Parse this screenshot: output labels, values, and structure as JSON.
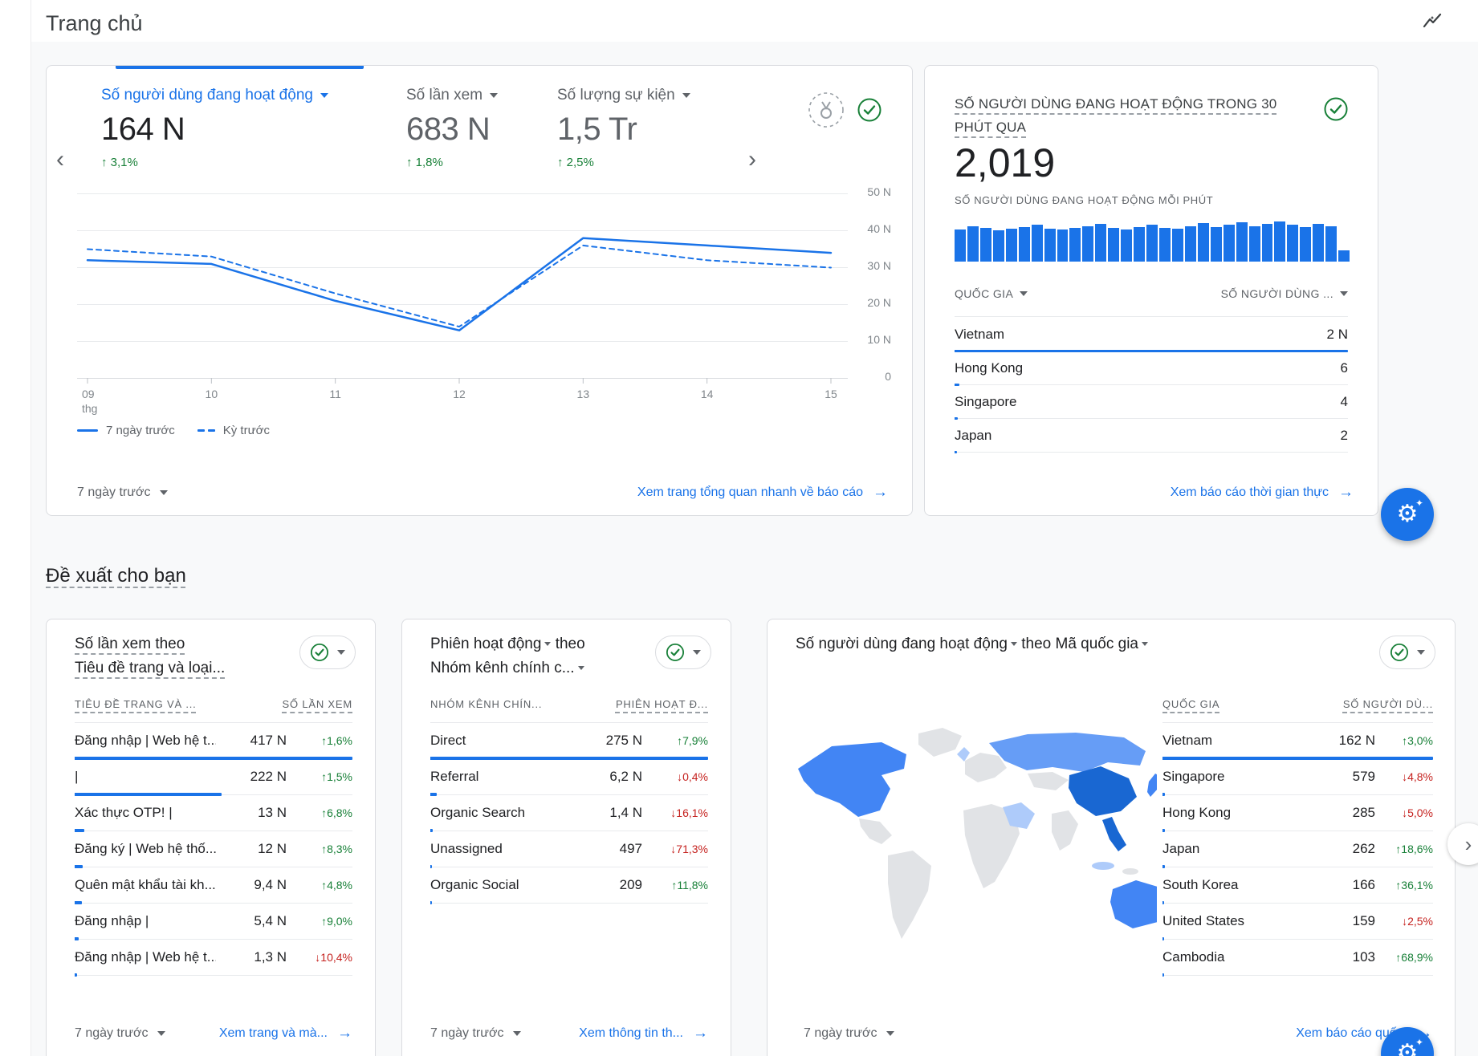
{
  "page": {
    "title": "Trang chủ"
  },
  "colors": {
    "accent": "#1a73e8",
    "up": "#188038",
    "down": "#c5221f",
    "map": {
      "land": "#e1e3e6",
      "low": "#aecbfa",
      "mid": "#669df6",
      "high": "#4285f4",
      "max": "#1967d2"
    }
  },
  "overview_card": {
    "metrics": [
      {
        "label": "Số người dùng đang hoạt động",
        "value": "164 N",
        "change": "3,1%",
        "dir": "up",
        "active": true
      },
      {
        "label": "Số lần xem",
        "value": "683 N",
        "change": "1,8%",
        "dir": "up",
        "active": false
      },
      {
        "label": "Số lượng sự kiện",
        "value": "1,5 Tr",
        "change": "2,5%",
        "dir": "up",
        "active": false
      }
    ],
    "chart_data": {
      "type": "line",
      "x": [
        "09\nthg",
        "10",
        "11",
        "12",
        "13",
        "14",
        "15"
      ],
      "series": [
        {
          "name": "7 ngày trước",
          "style": "solid",
          "values": [
            32,
            31,
            21,
            13,
            38,
            36,
            34
          ]
        },
        {
          "name": "Kỳ trước",
          "style": "dashed",
          "values": [
            35,
            33,
            23,
            14,
            36,
            32,
            30
          ]
        }
      ],
      "ylim": [
        0,
        50
      ],
      "yticks": [
        "50 N",
        "40 N",
        "30 N",
        "20 N",
        "10 N",
        "0"
      ],
      "grid": "horizontal",
      "legend_position": "bottom-left"
    },
    "footer": {
      "range": "7 ngày trước",
      "link": "Xem trang tổng quan nhanh về báo cáo"
    }
  },
  "realtime_card": {
    "title": "SỐ NGƯỜI DÙNG ĐANG HOẠT ĐỘNG TRONG 30 PHÚT QUA",
    "big_number": "2,019",
    "subtitle": "SỐ NGƯỜI DÙNG ĐANG HOẠT ĐỘNG MỖI PHÚT",
    "chart_data": {
      "type": "bar",
      "title": "Người dùng đang hoạt động mỗi phút (30 phút qua)",
      "values": [
        36,
        40,
        38,
        35,
        37,
        39,
        41,
        37,
        36,
        38,
        40,
        42,
        38,
        36,
        39,
        41,
        38,
        37,
        40,
        43,
        39,
        41,
        44,
        40,
        42,
        45,
        41,
        39,
        42,
        40,
        13
      ]
    },
    "columns": [
      "QUỐC GIA",
      "SỐ NGƯỜI DÙNG ..."
    ],
    "rows": [
      {
        "label": "Vietnam",
        "value": "2 N",
        "bar": 100
      },
      {
        "label": "Hong Kong",
        "value": "6",
        "bar": 1.2
      },
      {
        "label": "Singapore",
        "value": "4",
        "bar": 0.9
      },
      {
        "label": "Japan",
        "value": "2",
        "bar": 0.6
      }
    ],
    "footer_link": "Xem báo cáo thời gian thực"
  },
  "suggestions": {
    "title": "Đề xuất cho bạn"
  },
  "views_card": {
    "title_line1": "Số lần xem theo",
    "title_line2": "Tiêu đề trang và loại...",
    "columns": [
      "TIÊU ĐỀ TRANG VÀ ...",
      "SỐ LẦN XEM"
    ],
    "rows": [
      {
        "label": "Đăng nhập | Web hệ t...",
        "value": "417 N",
        "change": "1,6%",
        "dir": "up",
        "bar": 100
      },
      {
        "label": "|",
        "value": "222 N",
        "change": "1,5%",
        "dir": "up",
        "bar": 53
      },
      {
        "label": "Xác thực OTP! |",
        "value": "13 N",
        "change": "6,8%",
        "dir": "up",
        "bar": 3.5
      },
      {
        "label": "Đăng ký | Web hệ thố...",
        "value": "12 N",
        "change": "8,3%",
        "dir": "up",
        "bar": 3
      },
      {
        "label": "Quên mật khẩu tài kh...",
        "value": "9,4 N",
        "change": "4,8%",
        "dir": "up",
        "bar": 2.5
      },
      {
        "label": "Đăng nhập |",
        "value": "5,4 N",
        "change": "9,0%",
        "dir": "up",
        "bar": 1.5
      },
      {
        "label": "Đăng nhập | Web hệ t...",
        "value": "1,3 N",
        "change": "10,4%",
        "dir": "down",
        "bar": 0.8
      }
    ],
    "footer": {
      "range": "7 ngày trước",
      "link": "Xem trang và mà..."
    }
  },
  "sessions_card": {
    "title_metric": "Phiên hoạt động",
    "title_mid": "theo",
    "title_dim": "Nhóm kênh chính c...",
    "columns": [
      "NHÓM KÊNH CHÍN...",
      "PHIÊN HOẠT Đ..."
    ],
    "rows": [
      {
        "label": "Direct",
        "value": "275 N",
        "change": "7,9%",
        "dir": "up",
        "bar": 100
      },
      {
        "label": "Referral",
        "value": "6,2 N",
        "change": "0,4%",
        "dir": "down",
        "bar": 2.3
      },
      {
        "label": "Organic Search",
        "value": "1,4 N",
        "change": "16,1%",
        "dir": "down",
        "bar": 0.9
      },
      {
        "label": "Unassigned",
        "value": "497",
        "change": "71,3%",
        "dir": "down",
        "bar": 0.5
      },
      {
        "label": "Organic Social",
        "value": "209",
        "change": "11,8%",
        "dir": "up",
        "bar": 0.4
      }
    ],
    "footer": {
      "range": "7 ngày trước",
      "link": "Xem thông tin th..."
    }
  },
  "map_card": {
    "title_metric": "Số người dùng đang hoạt động",
    "title_rest": "theo Mã quốc gia",
    "columns": [
      "QUỐC GIA",
      "SỐ NGƯỜI DÙ..."
    ],
    "rows": [
      {
        "label": "Vietnam",
        "value": "162 N",
        "change": "3,0%",
        "dir": "up",
        "bar": 100
      },
      {
        "label": "Singapore",
        "value": "579",
        "change": "4,8%",
        "dir": "down",
        "bar": 1
      },
      {
        "label": "Hong Kong",
        "value": "285",
        "change": "5,0%",
        "dir": "down",
        "bar": 0.8
      },
      {
        "label": "Japan",
        "value": "262",
        "change": "18,6%",
        "dir": "up",
        "bar": 0.8
      },
      {
        "label": "South Korea",
        "value": "166",
        "change": "36,1%",
        "dir": "up",
        "bar": 0.6
      },
      {
        "label": "United States",
        "value": "159",
        "change": "2,5%",
        "dir": "down",
        "bar": 0.6
      },
      {
        "label": "Cambodia",
        "value": "103",
        "change": "68,9%",
        "dir": "up",
        "bar": 0.5
      }
    ],
    "footer": {
      "range": "7 ngày trước",
      "link": "Xem báo cáo quố..."
    }
  }
}
